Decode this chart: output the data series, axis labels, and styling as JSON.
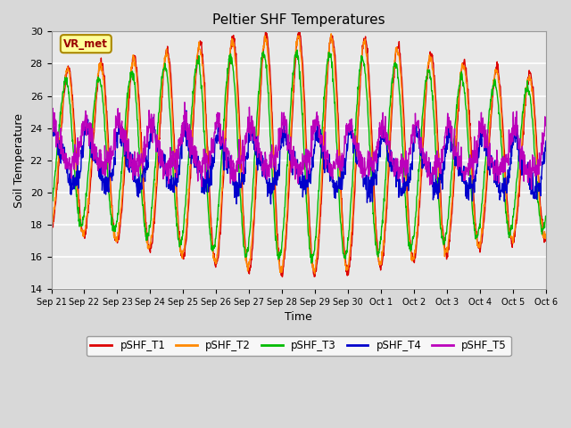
{
  "title": "Peltier SHF Temperatures",
  "xlabel": "Time",
  "ylabel": "Soil Temperature",
  "ylim": [
    14,
    30
  ],
  "yticks": [
    14,
    16,
    18,
    20,
    22,
    24,
    26,
    28,
    30
  ],
  "annotation": "VR_met",
  "annotation_color": "#990000",
  "annotation_bg": "#ffff99",
  "annotation_border": "#aa8800",
  "series_colors": {
    "pSHF_T1": "#dd0000",
    "pSHF_T2": "#ff8800",
    "pSHF_T3": "#00bb00",
    "pSHF_T4": "#0000cc",
    "pSHF_T5": "#bb00bb"
  },
  "bg_color": "#d8d8d8",
  "plot_bg": "#e8e8e8",
  "grid_color": "#ffffff",
  "title_color": "#000000",
  "n_points": 1500,
  "line_width": 1.0,
  "figsize": [
    6.4,
    4.8
  ],
  "dpi": 100
}
